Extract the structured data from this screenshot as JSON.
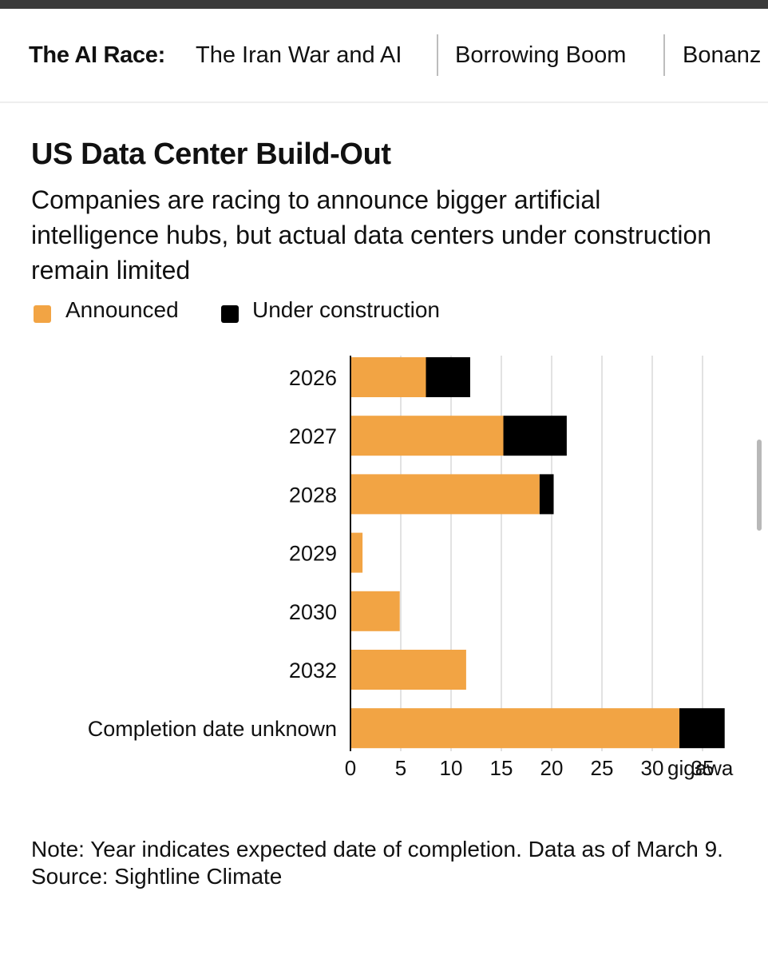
{
  "nav": {
    "label": "The AI Race:",
    "items": [
      "The Iran War and AI",
      "Borrowing Boom",
      "Bonanz"
    ]
  },
  "legend": {
    "announced": "Announced",
    "under_construction": "Under construction"
  },
  "colors": {
    "announced": "#F2A444",
    "under_construction": "#000000",
    "grid": "#d9d9d9"
  },
  "note": {
    "line1": "Note: Year indicates expected date of completion. Data as of March 9.",
    "source": "Source: Sightline Climate"
  },
  "chart_data": {
    "type": "bar",
    "orientation": "horizontal",
    "stacked": true,
    "title": "US Data Center Build-Out",
    "subtitle": "Companies are racing to announce bigger artificial intelligence hubs, but actual data centers under construction remain limited",
    "categories": [
      "2026",
      "2027",
      "2028",
      "2029",
      "2030",
      "2032",
      "Completion date unknown"
    ],
    "series": [
      {
        "name": "Announced",
        "values": [
          7.5,
          15.2,
          18.8,
          1.2,
          4.9,
          11.5,
          32.7
        ]
      },
      {
        "name": "Under construction",
        "values": [
          4.4,
          6.3,
          1.4,
          0,
          0,
          0,
          4.5
        ]
      }
    ],
    "xlim": [
      0,
      35
    ],
    "xticks": [
      0,
      5,
      10,
      15,
      20,
      25,
      30,
      35
    ],
    "xtick_labels": [
      "0",
      "5",
      "10",
      "15",
      "20",
      "25",
      "30",
      "35"
    ],
    "xunit": "gigawa",
    "grid": true
  }
}
